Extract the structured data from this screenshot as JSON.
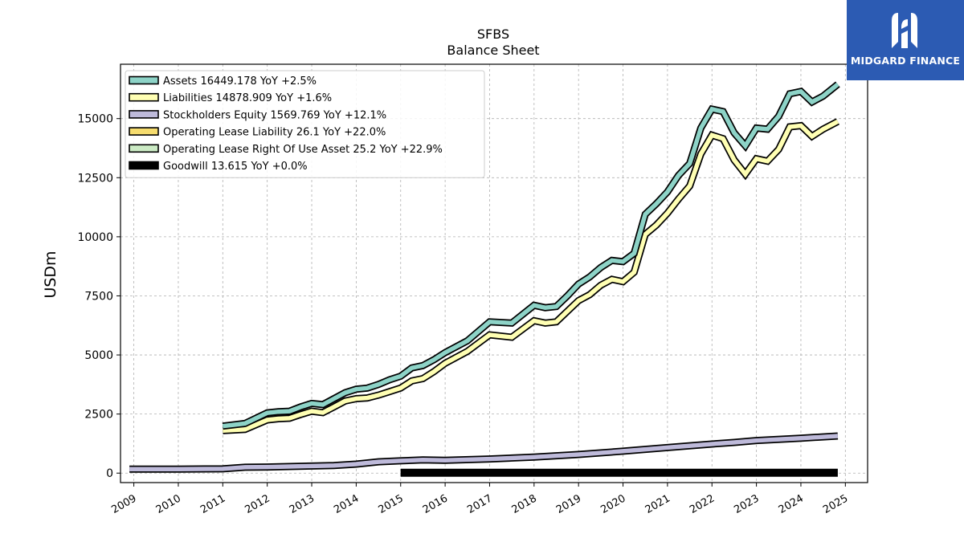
{
  "chart_data": {
    "type": "line",
    "title": "SFBS",
    "subtitle": "Balance  Sheet",
    "ylabel": "USDm",
    "xlabel": "",
    "xlim": [
      2008.7,
      2025.5
    ],
    "ylim": [
      -400,
      17300
    ],
    "x_ticks": [
      "2009",
      "2010",
      "2011",
      "2012",
      "2013",
      "2014",
      "2015",
      "2016",
      "2017",
      "2018",
      "2019",
      "2020",
      "2021",
      "2022",
      "2023",
      "2024",
      "2025"
    ],
    "y_ticks": [
      "0",
      "2500",
      "5000",
      "7500",
      "10000",
      "12500",
      "15000"
    ],
    "y_tick_values": [
      0,
      2500,
      5000,
      7500,
      10000,
      12500,
      15000
    ],
    "grid": true,
    "legend_position": "top-left",
    "legend": [
      {
        "label": "Assets  16449.178 YoY +2.5%",
        "color": "#8dd3c7"
      },
      {
        "label": "Liabilities  14878.909 YoY +1.6%",
        "color": "#ffffb3"
      },
      {
        "label": "Stockholders Equity  1569.769 YoY +12.1%",
        "color": "#bebada"
      },
      {
        "label": "Operating Lease Liability  26.1 YoY +22.0%",
        "color": "#f6dc6e"
      },
      {
        "label": "Operating Lease Right Of Use Asset  25.2 YoY +22.9%",
        "color": "#ccebc5"
      },
      {
        "label": "Goodwill  13.615 YoY +0.0%",
        "color": "#000000"
      }
    ],
    "series": [
      {
        "name": "Assets",
        "color": "#8dd3c7",
        "points": [
          [
            2011.0,
            1990
          ],
          [
            2011.5,
            2100
          ],
          [
            2012.0,
            2550
          ],
          [
            2012.25,
            2600
          ],
          [
            2012.5,
            2620
          ],
          [
            2012.75,
            2800
          ],
          [
            2013.0,
            2950
          ],
          [
            2013.25,
            2900
          ],
          [
            2013.5,
            3150
          ],
          [
            2013.75,
            3400
          ],
          [
            2014.0,
            3550
          ],
          [
            2014.25,
            3600
          ],
          [
            2014.5,
            3750
          ],
          [
            2014.75,
            3950
          ],
          [
            2015.0,
            4100
          ],
          [
            2015.25,
            4450
          ],
          [
            2015.5,
            4550
          ],
          [
            2015.75,
            4800
          ],
          [
            2016.0,
            5100
          ],
          [
            2016.5,
            5600
          ],
          [
            2017.0,
            6400
          ],
          [
            2017.5,
            6350
          ],
          [
            2018.0,
            7100
          ],
          [
            2018.25,
            7000
          ],
          [
            2018.5,
            7050
          ],
          [
            2018.75,
            7500
          ],
          [
            2019.0,
            8000
          ],
          [
            2019.25,
            8300
          ],
          [
            2019.5,
            8700
          ],
          [
            2019.75,
            9000
          ],
          [
            2020.0,
            8950
          ],
          [
            2020.25,
            9300
          ],
          [
            2020.5,
            10950
          ],
          [
            2020.75,
            11400
          ],
          [
            2021.0,
            11900
          ],
          [
            2021.25,
            12600
          ],
          [
            2021.5,
            13100
          ],
          [
            2021.75,
            14600
          ],
          [
            2022.0,
            15400
          ],
          [
            2022.25,
            15300
          ],
          [
            2022.5,
            14400
          ],
          [
            2022.75,
            13850
          ],
          [
            2023.0,
            14600
          ],
          [
            2023.25,
            14550
          ],
          [
            2023.5,
            15100
          ],
          [
            2023.75,
            16050
          ],
          [
            2024.0,
            16150
          ],
          [
            2024.25,
            15700
          ],
          [
            2024.5,
            15950
          ],
          [
            2024.83,
            16449
          ]
        ]
      },
      {
        "name": "Liabilities",
        "color": "#ffffb3",
        "points": [
          [
            2011.0,
            1800
          ],
          [
            2011.5,
            1850
          ],
          [
            2012.0,
            2250
          ],
          [
            2012.25,
            2300
          ],
          [
            2012.5,
            2320
          ],
          [
            2012.75,
            2480
          ],
          [
            2013.0,
            2620
          ],
          [
            2013.25,
            2560
          ],
          [
            2013.5,
            2800
          ],
          [
            2013.75,
            3050
          ],
          [
            2014.0,
            3150
          ],
          [
            2014.25,
            3180
          ],
          [
            2014.5,
            3300
          ],
          [
            2014.75,
            3450
          ],
          [
            2015.0,
            3600
          ],
          [
            2015.25,
            3900
          ],
          [
            2015.5,
            4000
          ],
          [
            2015.75,
            4300
          ],
          [
            2016.0,
            4650
          ],
          [
            2016.5,
            5150
          ],
          [
            2017.0,
            5850
          ],
          [
            2017.5,
            5750
          ],
          [
            2018.0,
            6450
          ],
          [
            2018.25,
            6350
          ],
          [
            2018.5,
            6400
          ],
          [
            2018.75,
            6850
          ],
          [
            2019.0,
            7300
          ],
          [
            2019.25,
            7550
          ],
          [
            2019.5,
            7950
          ],
          [
            2019.75,
            8200
          ],
          [
            2020.0,
            8100
          ],
          [
            2020.25,
            8500
          ],
          [
            2020.5,
            10100
          ],
          [
            2020.75,
            10500
          ],
          [
            2021.0,
            11000
          ],
          [
            2021.25,
            11600
          ],
          [
            2021.5,
            12150
          ],
          [
            2021.75,
            13500
          ],
          [
            2022.0,
            14300
          ],
          [
            2022.25,
            14150
          ],
          [
            2022.5,
            13250
          ],
          [
            2022.75,
            12650
          ],
          [
            2023.0,
            13300
          ],
          [
            2023.25,
            13200
          ],
          [
            2023.5,
            13700
          ],
          [
            2023.75,
            14650
          ],
          [
            2024.0,
            14700
          ],
          [
            2024.25,
            14250
          ],
          [
            2024.5,
            14550
          ],
          [
            2024.83,
            14879
          ]
        ]
      },
      {
        "name": "Stockholders Equity",
        "color": "#bebada",
        "points": [
          [
            2008.9,
            170
          ],
          [
            2010.0,
            170
          ],
          [
            2011.0,
            180
          ],
          [
            2011.5,
            250
          ],
          [
            2012.0,
            260
          ],
          [
            2013.0,
            300
          ],
          [
            2013.5,
            320
          ],
          [
            2014.0,
            380
          ],
          [
            2014.5,
            480
          ],
          [
            2015.0,
            520
          ],
          [
            2015.5,
            560
          ],
          [
            2016.0,
            540
          ],
          [
            2017.0,
            600
          ],
          [
            2018.0,
            680
          ],
          [
            2019.0,
            790
          ],
          [
            2020.0,
            930
          ],
          [
            2021.0,
            1080
          ],
          [
            2022.0,
            1230
          ],
          [
            2022.5,
            1300
          ],
          [
            2023.0,
            1380
          ],
          [
            2024.0,
            1480
          ],
          [
            2024.83,
            1570
          ]
        ]
      },
      {
        "name": "Goodwill",
        "color": "#000000",
        "points": [
          [
            2015.0,
            14
          ],
          [
            2024.83,
            14
          ]
        ]
      }
    ]
  },
  "watermark": {
    "text": "MIDGARD FINANCE",
    "color": "#2c5bb3"
  }
}
